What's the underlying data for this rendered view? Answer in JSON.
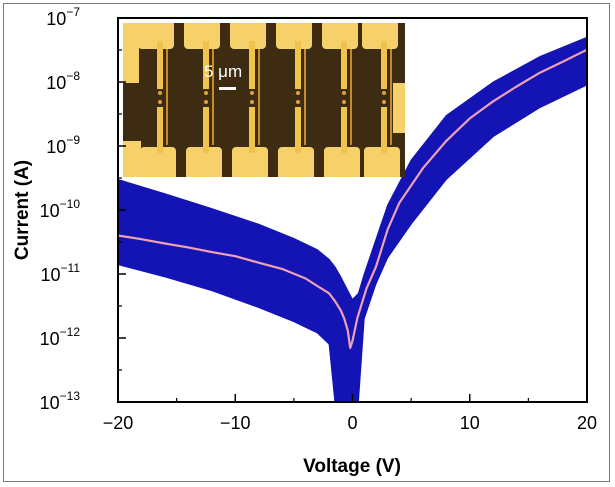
{
  "chart_data": {
    "type": "line",
    "title": "",
    "xlabel": "Voltage (V)",
    "ylabel": "Current (A)",
    "xlim": [
      -20,
      20
    ],
    "ylim": [
      1e-13,
      1e-07
    ],
    "yscale": "log",
    "grid": false,
    "x_ticks": [
      -20,
      -10,
      0,
      10,
      20
    ],
    "x_tick_labels": [
      "−20",
      "−10",
      "0",
      "10",
      "20"
    ],
    "y_ticks": [
      {
        "value": 1e-13,
        "base": "10",
        "exp": "−13"
      },
      {
        "value": 1e-12,
        "base": "10",
        "exp": "−12"
      },
      {
        "value": 1e-11,
        "base": "10",
        "exp": "−11"
      },
      {
        "value": 1e-10,
        "base": "10",
        "exp": "−10"
      },
      {
        "value": 1e-09,
        "base": "10",
        "exp": "−9"
      },
      {
        "value": 1e-08,
        "base": "10",
        "exp": "−8"
      },
      {
        "value": 1e-07,
        "base": "10",
        "exp": "−7"
      }
    ],
    "series": [
      {
        "role": "spread-band",
        "color": "#1414b4",
        "x": [
          -20,
          -16,
          -12,
          -8,
          -5,
          -3,
          -2,
          -1.5,
          -1,
          -0.5,
          0,
          0.5,
          1,
          2,
          3,
          5,
          8,
          12,
          16,
          20
        ],
        "upper": [
          3e-10,
          1.8e-10,
          1.05e-10,
          6e-11,
          3.6e-11,
          2.4e-11,
          1.7e-11,
          1.3e-11,
          9e-12,
          6e-12,
          4e-12,
          5e-12,
          1e-11,
          3.5e-11,
          1.2e-10,
          6e-10,
          3e-09,
          1e-08,
          2.5e-08,
          5e-08
        ],
        "lower": [
          1.4e-11,
          9e-12,
          5.5e-12,
          3e-12,
          1.8e-12,
          1.2e-12,
          8e-13,
          1e-13,
          1e-13,
          1e-13,
          1e-13,
          1e-13,
          2e-12,
          7e-12,
          1.8e-11,
          6e-11,
          3e-10,
          1.4e-09,
          4e-09,
          9e-09
        ]
      },
      {
        "role": "mean-curve",
        "color": "#f0a0b4",
        "x": [
          -20,
          -18,
          -16,
          -14,
          -12,
          -10,
          -8,
          -6,
          -4,
          -3,
          -2,
          -1.5,
          -1,
          -0.7,
          -0.4,
          -0.2,
          0,
          0.4,
          0.8,
          1.2,
          2,
          3,
          4,
          6,
          8,
          10,
          12,
          14,
          16,
          18,
          20
        ],
        "y": [
          4e-11,
          3.5e-11,
          3e-11,
          2.6e-11,
          2.2e-11,
          1.9e-11,
          1.5e-11,
          1.2e-11,
          8.5e-12,
          6.5e-12,
          5e-12,
          3.8e-12,
          2.7e-12,
          2e-12,
          1.3e-12,
          7e-13,
          9e-13,
          2e-12,
          3.5e-12,
          6e-12,
          1.3e-11,
          5e-11,
          1.3e-10,
          4.5e-10,
          1.2e-09,
          2.7e-09,
          5e-09,
          8.5e-09,
          1.4e-08,
          2.1e-08,
          3.2e-08
        ]
      }
    ]
  },
  "inset": {
    "scale_bar_label": "5 μm",
    "colors": {
      "metal": "#f0c44c",
      "substrate": "#3d2b12",
      "pad": "#f6d16a"
    }
  }
}
